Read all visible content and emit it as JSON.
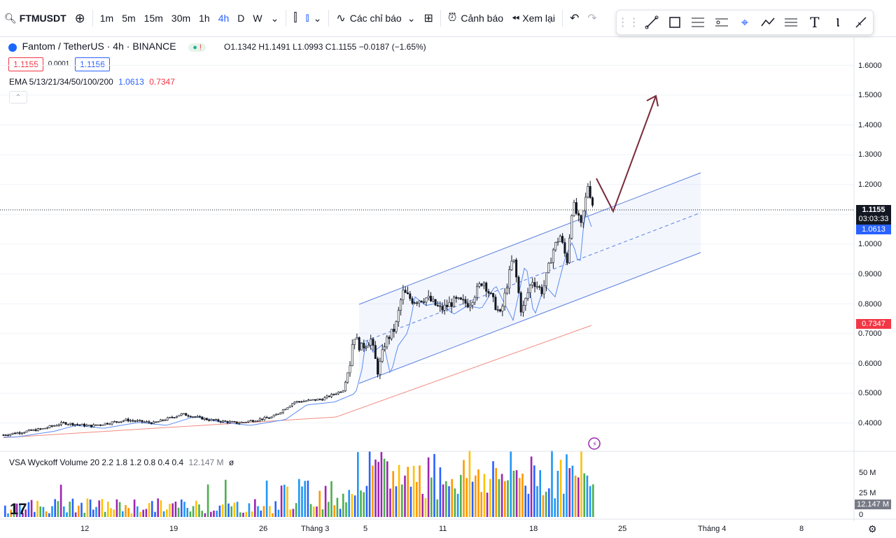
{
  "toolbar": {
    "symbol": "FTMUSDT",
    "timeframes": [
      "1m",
      "5m",
      "15m",
      "30m",
      "1h",
      "4h",
      "D",
      "W"
    ],
    "active_timeframe": "4h",
    "indicators_label": "Các chỉ báo",
    "alert_label": "Cảnh báo",
    "replay_label": "Xem lại"
  },
  "legend": {
    "name": "Fantom / TetherUS · 4h · BINANCE",
    "ohlc": "O1.1342 H1.1491 L1.0993 C1.1155 −0.0187 (−1.65%)",
    "bid": "1.1155",
    "spread": "0.0001",
    "ask": "1.1156",
    "ema_label": "EMA 5/13/21/34/50/100/200",
    "ema_v1": "1.0613",
    "ema_v2": "0.7347"
  },
  "volume": {
    "label": "VSA Wyckoff Volume 20 2.2 1.8 1.2 0.8 0.4 0.4",
    "value": "12.147 M",
    "extra": "ø",
    "axis": [
      "50 M",
      "25 M",
      "0"
    ],
    "current": "12.147 M"
  },
  "price_axis": [
    "1.6000",
    "1.5000",
    "1.4000",
    "1.3000",
    "1.2000",
    "1.0000",
    "0.9000",
    "0.8000",
    "0.7000",
    "0.6000",
    "0.5000",
    "0.4000"
  ],
  "last_price": {
    "value": "1.1155",
    "countdown": "03:03:33"
  },
  "ema_fast_tag": "1.0613",
  "ema_slow_tag": "0.7347",
  "x_axis": [
    "12",
    "19",
    "26",
    "Tháng 3",
    "5",
    "11",
    "18",
    "25",
    "Tháng 4",
    "8"
  ],
  "colors": {
    "up": "#131722",
    "down": "#131722",
    "ema_fast": "#5b8cf0",
    "ema_slow": "#f28b82",
    "channel": "#5b7fe0",
    "arrow": "#7a2a3a",
    "last": "#131722"
  }
}
